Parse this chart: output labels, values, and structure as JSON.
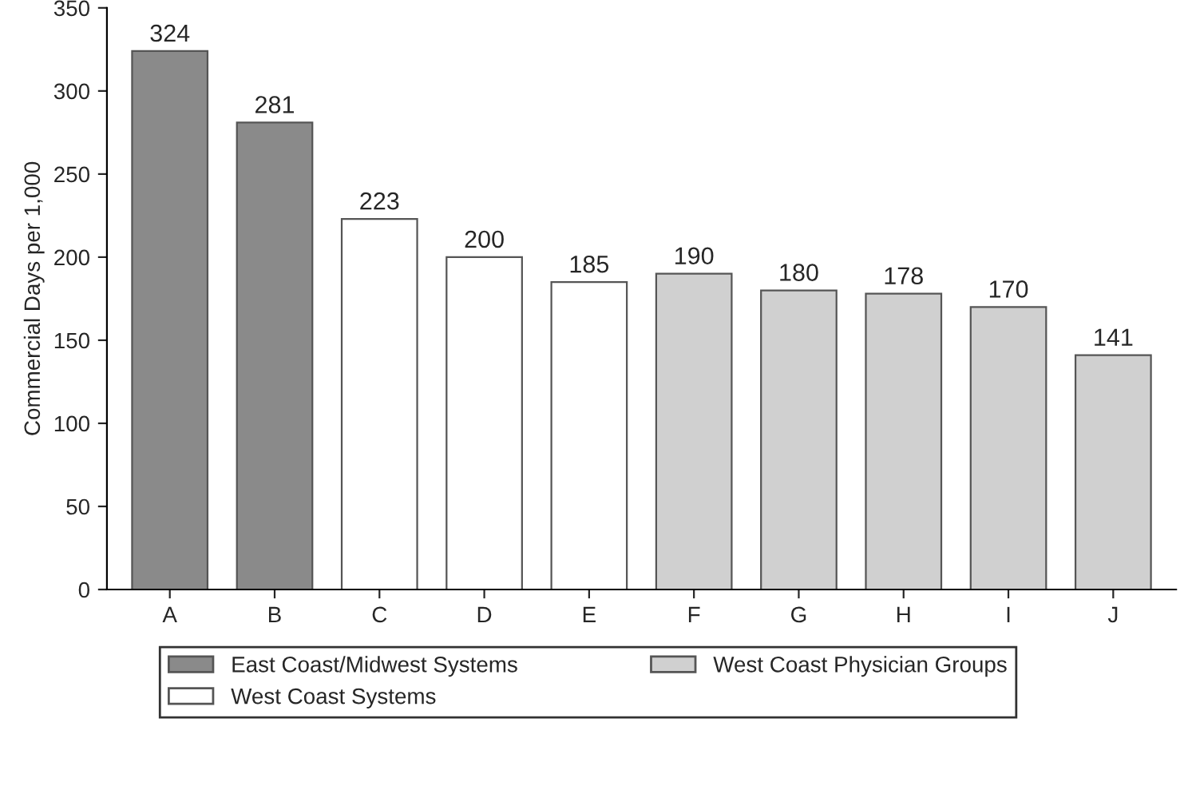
{
  "chart_data": {
    "type": "bar",
    "ylabel": "Commercial Days per 1,000",
    "categories": [
      "A",
      "B",
      "C",
      "D",
      "E",
      "F",
      "G",
      "H",
      "I",
      "J"
    ],
    "series": [
      {
        "name": "East Coast/Midwest Systems",
        "color": "#8a8a8a",
        "values": [
          324,
          281,
          null,
          null,
          null,
          null,
          null,
          null,
          null,
          null
        ]
      },
      {
        "name": "West Coast Systems",
        "color": "#ffffff",
        "values": [
          null,
          null,
          223,
          200,
          185,
          null,
          null,
          null,
          null,
          null
        ]
      },
      {
        "name": "West Coast Physician Groups",
        "color": "#d0d0d0",
        "values": [
          null,
          null,
          null,
          null,
          null,
          190,
          180,
          178,
          170,
          141
        ]
      }
    ],
    "ylim": [
      0,
      350
    ],
    "yticks": [
      0,
      50,
      100,
      150,
      200,
      250,
      300,
      350
    ],
    "data_labels": true,
    "legend": "bottom",
    "grid": false
  }
}
